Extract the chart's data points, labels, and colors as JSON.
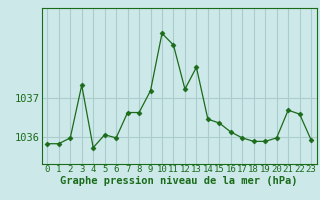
{
  "x": [
    0,
    1,
    2,
    3,
    4,
    5,
    6,
    7,
    8,
    9,
    10,
    11,
    12,
    13,
    14,
    15,
    16,
    17,
    18,
    19,
    20,
    21,
    22,
    23
  ],
  "y": [
    1035.82,
    1035.82,
    1035.97,
    1037.32,
    1035.72,
    1036.05,
    1035.97,
    1036.62,
    1036.62,
    1037.18,
    1038.65,
    1038.35,
    1037.22,
    1037.78,
    1036.45,
    1036.35,
    1036.12,
    1035.97,
    1035.88,
    1035.88,
    1035.97,
    1036.68,
    1036.58,
    1035.92
  ],
  "line_color": "#1a6b1a",
  "marker": "D",
  "marker_size": 2.5,
  "bg_color": "#cce8e8",
  "grid_color": "#aacccc",
  "yticks": [
    1036,
    1037
  ],
  "ylim": [
    1035.3,
    1039.3
  ],
  "xlim": [
    -0.5,
    23.5
  ],
  "tick_fontsize": 7.5,
  "xlabel_fontsize": 7.5,
  "label_color": "#1a6b1a",
  "xlabel": "Graphe pression niveau de la mer (hPa)"
}
